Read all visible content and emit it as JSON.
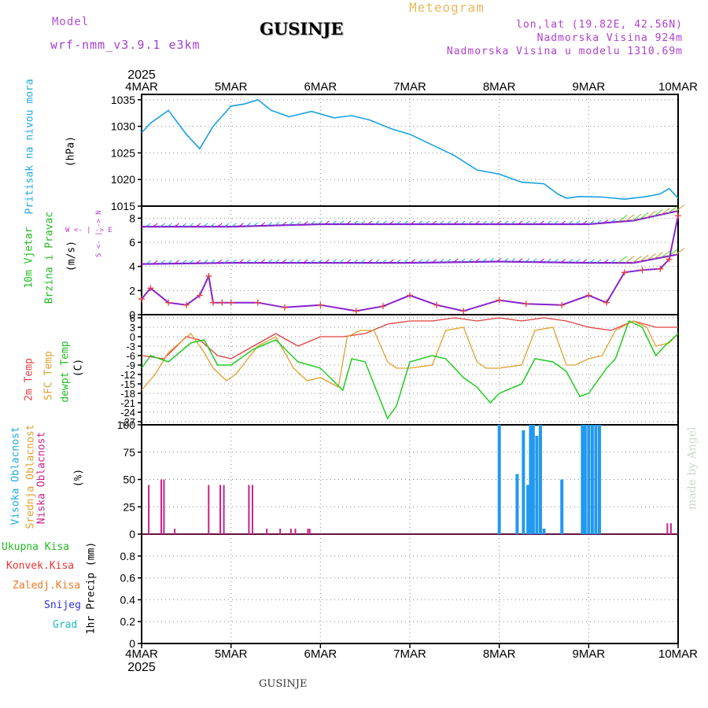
{
  "header": {
    "model_label": "Model",
    "model_name": "wrf-nmm_v3.9.1 e3km",
    "chart_kind": "Meteogram",
    "station": "GUSINJE",
    "coords": "lon,lat (19.82E, 42.56N)",
    "elevation": "Nadmorska Visina 924m",
    "model_elevation": "Nadmorska Visina u modelu 1310.69m",
    "footer_station": "GUSINJE",
    "credit": "made by Angel"
  },
  "colors": {
    "pressure": "#1aa0e0",
    "wind_label": "#22bb22",
    "red": "#e04040",
    "orange": "#e0a030",
    "green": "#22cc22",
    "magenta": "#cc2288",
    "cyan": "#22aadd",
    "purple": "#8822cc",
    "blue": "#2299ee",
    "snow": "#3333dd",
    "hail": "#22bbbb",
    "conv": "#ee3333",
    "frozen": "#ee7722"
  },
  "chart_data": [
    {
      "type": "line",
      "title": "Pritisak na nivou mora",
      "ylabel": "(hPa)",
      "ylim": [
        1015,
        1036
      ],
      "yticks": [
        1015,
        1020,
        1025,
        1030,
        1035
      ],
      "x_start_year": "2025",
      "x_tick_labels": [
        "4MAR",
        "5MAR",
        "6MAR",
        "7MAR",
        "8MAR",
        "9MAR",
        "10MAR"
      ],
      "x_days": [
        0,
        6
      ],
      "series": [
        {
          "name": "Pritisak",
          "x": [
            0,
            0.1,
            0.3,
            0.5,
            0.65,
            0.8,
            1.0,
            1.15,
            1.3,
            1.45,
            1.65,
            1.9,
            2.15,
            2.35,
            2.55,
            2.8,
            3.0,
            3.25,
            3.5,
            3.75,
            4.0,
            4.25,
            4.5,
            4.65,
            4.75,
            4.9,
            5.15,
            5.4,
            5.65,
            5.8,
            5.9,
            6.0
          ],
          "values": [
            1028.8,
            1030.6,
            1033.0,
            1028.5,
            1025.8,
            1030.0,
            1033.8,
            1034.2,
            1035.0,
            1033.0,
            1031.8,
            1032.8,
            1031.6,
            1032.0,
            1031.2,
            1029.5,
            1028.5,
            1026.5,
            1024.5,
            1021.8,
            1021.0,
            1019.5,
            1019.2,
            1017.3,
            1016.5,
            1016.8,
            1016.7,
            1016.3,
            1016.8,
            1017.3,
            1018.3,
            1016.5
          ]
        }
      ]
    },
    {
      "type": "line",
      "title": "10m Vjetar Brzina i Pravac",
      "ylabel": "(m/s)",
      "legend": "W <- | -> E  S <- | -> N",
      "ylim": [
        0,
        9
      ],
      "yticks": [
        0,
        2,
        4,
        6,
        8
      ],
      "series": [
        {
          "name": "upper wind row",
          "x": [
            0,
            0.5,
            1,
            2,
            3,
            4,
            5,
            5.5,
            6
          ],
          "values": [
            7.3,
            7.3,
            7.3,
            7.5,
            7.5,
            7.5,
            7.5,
            7.8,
            8.6
          ]
        },
        {
          "name": "middle wind row",
          "x": [
            0,
            1,
            2,
            3,
            4,
            5,
            5.5,
            6
          ],
          "values": [
            4.2,
            4.3,
            4.3,
            4.3,
            4.4,
            4.3,
            4.3,
            5.0
          ]
        },
        {
          "name": "wind speed",
          "x": [
            0,
            0.1,
            0.3,
            0.5,
            0.65,
            0.75,
            0.8,
            0.9,
            1.0,
            1.3,
            1.6,
            2.0,
            2.4,
            2.7,
            3.0,
            3.3,
            3.6,
            4.0,
            4.3,
            4.7,
            5.0,
            5.2,
            5.4,
            5.6,
            5.8,
            5.9,
            6.0
          ],
          "values": [
            1.3,
            2.2,
            1.0,
            0.8,
            1.6,
            3.2,
            1.0,
            1.0,
            1.0,
            1.0,
            0.6,
            0.8,
            0.3,
            0.7,
            1.6,
            0.8,
            0.3,
            1.2,
            0.9,
            0.8,
            1.6,
            1.0,
            3.5,
            3.7,
            3.8,
            4.6,
            8.2
          ]
        }
      ]
    },
    {
      "type": "line",
      "title": "2m Temp / SFC Temp / dewpt Temp",
      "ylabel": "(C)",
      "ylim": [
        -28,
        7
      ],
      "yticks": [
        6,
        3,
        0,
        -3,
        -6,
        -9,
        -12,
        -15,
        -18,
        -21,
        -24,
        -27
      ],
      "series": [
        {
          "name": "2m Temp",
          "x": [
            0,
            0.25,
            0.5,
            0.65,
            0.85,
            1.0,
            1.25,
            1.5,
            1.75,
            2.0,
            2.25,
            2.5,
            2.75,
            3.0,
            3.25,
            3.5,
            3.75,
            4.0,
            4.25,
            4.5,
            4.75,
            5.0,
            5.25,
            5.5,
            5.75,
            6.0
          ],
          "values": [
            -6,
            -7,
            0,
            -1,
            -6,
            -7,
            -3,
            1,
            -3,
            0,
            0,
            1,
            4,
            5,
            5,
            6,
            5,
            6,
            5,
            6,
            5,
            3,
            2,
            5,
            3,
            3
          ]
        },
        {
          "name": "SFC Temp",
          "x": [
            0,
            0.15,
            0.3,
            0.55,
            0.7,
            0.8,
            0.95,
            1.05,
            1.3,
            1.5,
            1.7,
            1.85,
            2.0,
            2.2,
            2.3,
            2.45,
            2.6,
            2.75,
            2.85,
            3.0,
            3.25,
            3.4,
            3.6,
            3.75,
            3.85,
            4.0,
            4.25,
            4.4,
            4.6,
            4.75,
            4.85,
            5.0,
            5.15,
            5.3,
            5.5,
            5.65,
            5.75,
            5.9,
            6.0
          ],
          "values": [
            -17,
            -12,
            -5,
            1,
            -5,
            -10,
            -14,
            -12,
            -3,
            0,
            -10,
            -14,
            -13,
            -16,
            0,
            2,
            2,
            -8,
            -10,
            -10,
            -9,
            2,
            3,
            -8,
            -10,
            -10,
            -9,
            2,
            3,
            -9,
            -9,
            -7,
            -6,
            2,
            5,
            3,
            -3,
            -2,
            1
          ]
        },
        {
          "name": "dewpt Temp",
          "x": [
            0,
            0.1,
            0.3,
            0.55,
            0.7,
            0.85,
            1.0,
            1.25,
            1.5,
            1.75,
            2.0,
            2.25,
            2.35,
            2.5,
            2.75,
            2.85,
            3.0,
            3.25,
            3.4,
            3.6,
            3.75,
            3.9,
            4.0,
            4.25,
            4.4,
            4.6,
            4.75,
            4.9,
            5.0,
            5.2,
            5.3,
            5.45,
            5.6,
            5.75,
            5.85,
            6.0
          ],
          "values": [
            -10,
            -6,
            -8,
            -2,
            -1,
            -9,
            -9,
            -4,
            -1,
            -8,
            -10,
            -17,
            -7,
            -8,
            -26,
            -22,
            -8,
            -6,
            -7,
            -13,
            -16,
            -21,
            -18,
            -15,
            -7,
            -8,
            -11,
            -19,
            -18,
            -10,
            -7,
            5,
            3,
            -6,
            -3,
            1
          ]
        }
      ]
    },
    {
      "type": "bar",
      "title": "Visoka / Srednja / Niska Oblacnost",
      "ylabel": "(%)",
      "ylim": [
        0,
        100
      ],
      "yticks": [
        0,
        25,
        50,
        75,
        100
      ],
      "series": [
        {
          "name": "Niska Oblacnost",
          "x": [
            0.08,
            0.22,
            0.25,
            0.37,
            0.75,
            0.88,
            0.92,
            1.2,
            1.24,
            1.4,
            1.55,
            1.67,
            1.72,
            1.86,
            1.88,
            5.88,
            5.92
          ],
          "values": [
            45,
            50,
            50,
            5,
            45,
            45,
            45,
            45,
            45,
            5,
            5,
            5,
            5,
            5,
            5,
            10,
            10
          ]
        },
        {
          "name": "Visoka Oblacnost",
          "x": [
            4.0,
            4.2,
            4.27,
            4.32,
            4.35,
            4.38,
            4.42,
            4.46,
            4.5,
            4.7,
            4.93,
            4.96,
            5.0,
            5.04,
            5.08,
            5.12
          ],
          "values": [
            100,
            55,
            95,
            45,
            100,
            100,
            90,
            100,
            5,
            50,
            100,
            100,
            100,
            100,
            100,
            100
          ]
        }
      ]
    },
    {
      "type": "bar",
      "title": "Ukupna Kisa / Konvek.Kisa / Zaledj.Kisa / Snijeg / Grad",
      "ylabel": "1hr Precip (mm)",
      "ylim": [
        0,
        1
      ],
      "yticks": [
        0,
        0.2,
        0.4,
        0.6,
        0.8
      ],
      "series": []
    }
  ],
  "labels": {
    "p1_title": "Pritisak na nivou mora",
    "p1_unit": "(hPa)",
    "p2_line1": "10m Vjetar",
    "p2_line2": "Brzina i Pravac",
    "p2_unit": "(m/s)",
    "p2_legend_we": "W <- | -> E",
    "p2_legend_sn": "S <- | -> N",
    "p3_2m": "2m Temp",
    "p3_sfc": "SFC Temp",
    "p3_dew": "dewpt Temp",
    "p3_unit": "(C)",
    "p4_high": "Visoka Oblacnost",
    "p4_mid": "Srednja Oblacnost",
    "p4_low": "Niska Oblacnost",
    "p4_unit": "(%)",
    "p5_total": "Ukupna Kisa",
    "p5_conv": "Konvek.Kisa",
    "p5_frozen": "Zaledj.Kisa",
    "p5_snow": "Snijeg",
    "p5_hail": "Grad",
    "p5_unit": "1hr Precip (mm)"
  }
}
